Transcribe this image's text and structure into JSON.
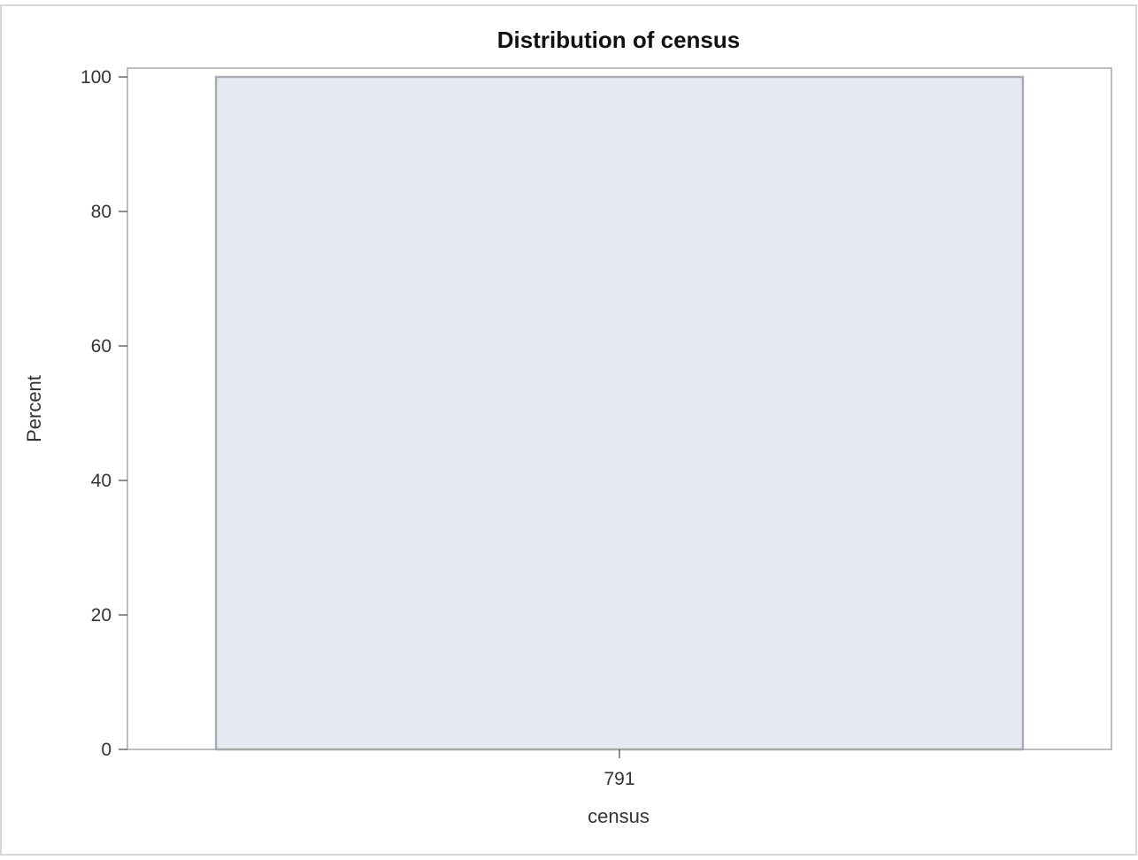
{
  "chart_data": {
    "type": "bar",
    "title": "Distribution of census",
    "xlabel": "census",
    "ylabel": "Percent",
    "categories": [
      "791"
    ],
    "values": [
      100
    ],
    "ylim": [
      0,
      100
    ],
    "yticks": [
      0,
      20,
      40,
      60,
      80,
      100
    ],
    "grid": false,
    "legend": "none",
    "colors": {
      "bar_fill": "#e4e9f2",
      "bar_stroke": "#a9acb2",
      "plot_border": "#a8a8a8"
    }
  }
}
